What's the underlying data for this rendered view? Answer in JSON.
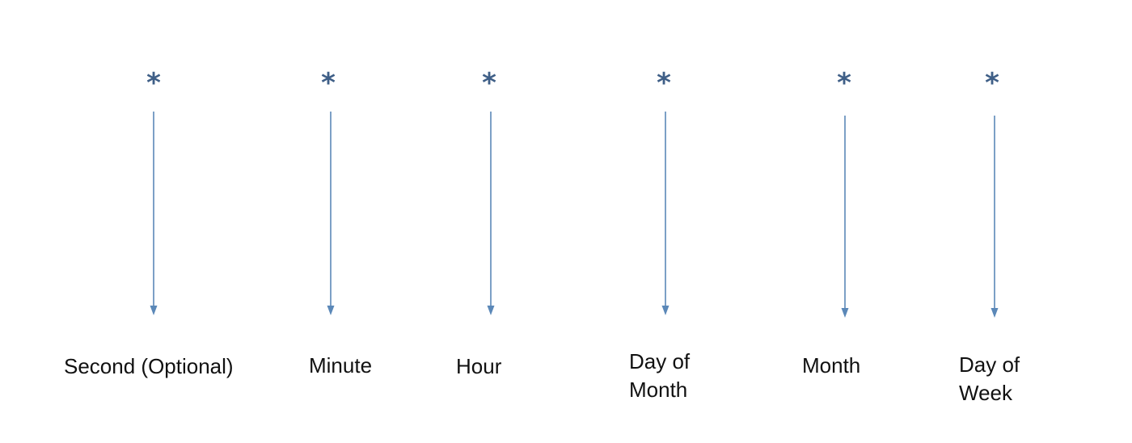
{
  "colors": {
    "asterisk": "#3f5f87",
    "arrow": "#5b88b8",
    "label": "#111111"
  },
  "fields": [
    {
      "symbol": "*",
      "label_lines": [
        "Second (Optional)"
      ]
    },
    {
      "symbol": "*",
      "label_lines": [
        "Minute"
      ]
    },
    {
      "symbol": "*",
      "label_lines": [
        "Hour"
      ]
    },
    {
      "symbol": "*",
      "label_lines": [
        "Day of",
        "Month"
      ]
    },
    {
      "symbol": "*",
      "label_lines": [
        "Month"
      ]
    },
    {
      "symbol": "*",
      "label_lines": [
        "Day of",
        "Week"
      ]
    }
  ]
}
